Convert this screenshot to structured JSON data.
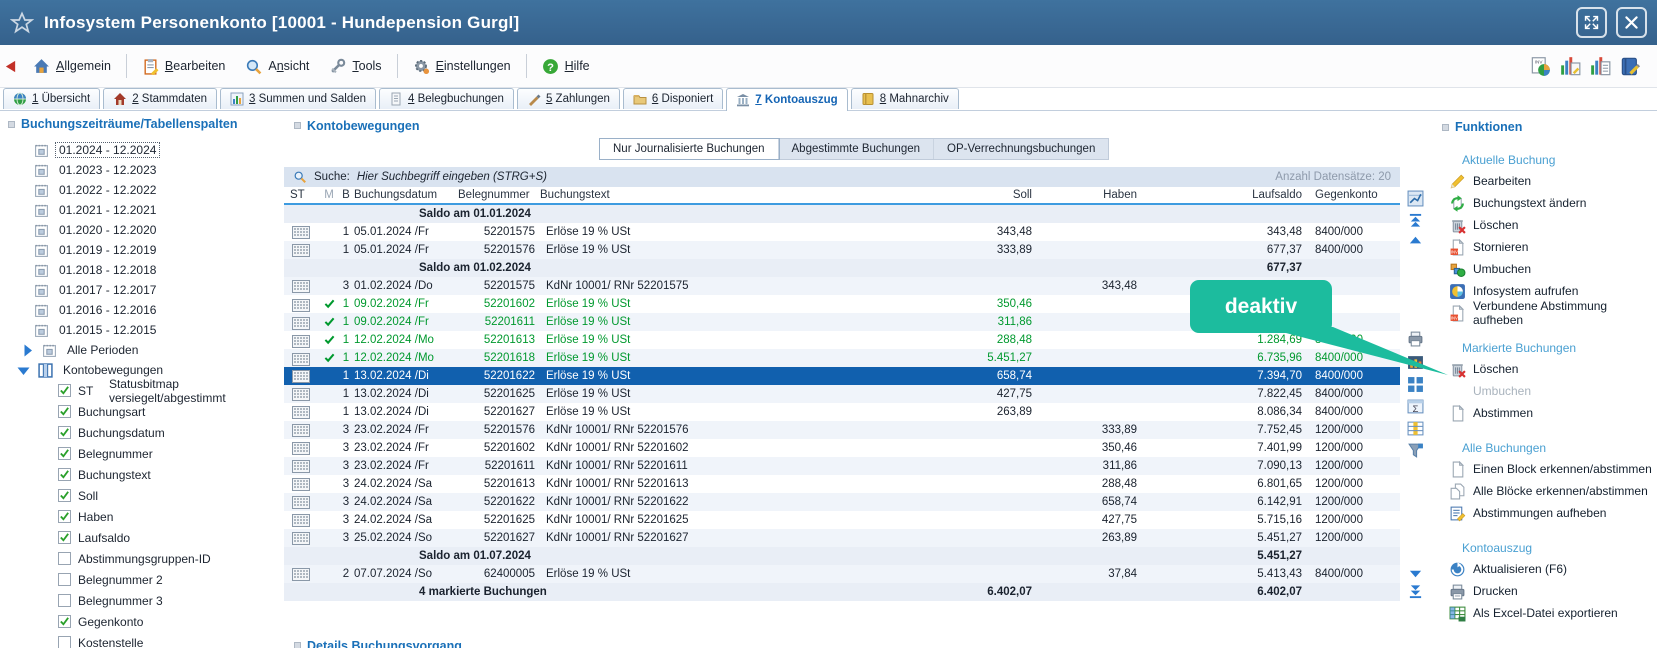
{
  "window": {
    "title": "Infosystem Personenkonto [10001 - Hundepension Gurgl]"
  },
  "menubar": {
    "items": [
      {
        "label": "Allgemein",
        "icon": "house-icon",
        "mnemonic": 0
      },
      {
        "label": "Bearbeiten",
        "icon": "clipboard-icon",
        "mnemonic": 0
      },
      {
        "label": "Ansicht",
        "icon": "magnifier-icon",
        "mnemonic": 1
      },
      {
        "label": "Tools",
        "icon": "wrench-icon",
        "mnemonic": 0
      },
      {
        "label": "Einstellungen",
        "icon": "gear-icon",
        "mnemonic": 0
      },
      {
        "label": "Hilfe",
        "icon": "help-icon",
        "mnemonic": 0
      }
    ],
    "right_icons": [
      "report-chart-icon",
      "chart-edit-icon",
      "chart-doc-icon",
      "book-edit-icon"
    ]
  },
  "tabs": [
    {
      "num": "1",
      "label": "Übersicht",
      "icon": "globe-icon",
      "active": false
    },
    {
      "num": "2",
      "label": "Stammdaten",
      "icon": "home-icon",
      "active": false
    },
    {
      "num": "3",
      "label": "Summen und Salden",
      "icon": "barchart-icon",
      "active": false
    },
    {
      "num": "4",
      "label": "Belegbuchungen",
      "icon": "document-icon",
      "active": false
    },
    {
      "num": "5",
      "label": "Zahlungen",
      "icon": "pen-icon",
      "active": false
    },
    {
      "num": "6",
      "label": "Disponiert",
      "icon": "folder-icon",
      "active": false
    },
    {
      "num": "7",
      "label": "Kontoauszug",
      "icon": "bank-icon",
      "active": true
    },
    {
      "num": "8",
      "label": "Mahnarchiv",
      "icon": "book-icon",
      "active": false
    }
  ],
  "sidebar": {
    "header": "Buchungszeiträume/Tabellenspalten",
    "periods": [
      "01.2024 - 12.2024",
      "01.2023 - 12.2023",
      "01.2022 - 12.2022",
      "01.2021 - 12.2021",
      "01.2020 - 12.2020",
      "01.2019 - 12.2019",
      "01.2018 - 12.2018",
      "01.2017 - 12.2017",
      "01.2016 - 12.2016",
      "01.2015 - 12.2015"
    ],
    "selected_period": 0,
    "alle_perioden": "Alle Perioden",
    "kontobewegungen": "Kontobewegungen",
    "columns": [
      {
        "prefix": "ST",
        "label": "Statusbitmap versiegelt/abgestimmt",
        "checked": true
      },
      {
        "prefix": "",
        "label": "Buchungsart",
        "checked": true
      },
      {
        "prefix": "",
        "label": "Buchungsdatum",
        "checked": true
      },
      {
        "prefix": "",
        "label": "Belegnummer",
        "checked": true
      },
      {
        "prefix": "",
        "label": "Buchungstext",
        "checked": true
      },
      {
        "prefix": "",
        "label": "Soll",
        "checked": true
      },
      {
        "prefix": "",
        "label": "Haben",
        "checked": true
      },
      {
        "prefix": "",
        "label": "Laufsaldo",
        "checked": true
      },
      {
        "prefix": "",
        "label": "Abstimmungsgruppen-ID",
        "checked": false
      },
      {
        "prefix": "",
        "label": "Belegnummer 2",
        "checked": false
      },
      {
        "prefix": "",
        "label": "Belegnummer 3",
        "checked": false
      },
      {
        "prefix": "",
        "label": "Gegenkonto",
        "checked": true
      },
      {
        "prefix": "",
        "label": "Kostenstelle",
        "checked": false
      }
    ]
  },
  "main": {
    "header": "Kontobewegungen",
    "filters": [
      {
        "label": "Nur Journalisierte Buchungen",
        "active": true
      },
      {
        "label": "Abgestimmte Buchungen",
        "active": false
      },
      {
        "label": "OP-Verrechnungsbuchungen",
        "active": false
      }
    ],
    "search": {
      "label": "Suche:",
      "placeholder": "Hier Suchbegriff eingeben (STRG+S)",
      "count": "Anzahl Datensätze: 20"
    },
    "columns": [
      "ST",
      "M",
      "B",
      "Buchungsdatum",
      "Belegnummer",
      "Buchungstext",
      "Soll",
      "Haben",
      "Laufsaldo",
      "Gegenkonto"
    ],
    "rows": [
      {
        "type": "saldo",
        "text": "Saldo am 01.01.2024",
        "laufsaldo": ""
      },
      {
        "type": "entry",
        "b": "1",
        "datum": "05.01.2024 /Fr",
        "beleg": "52201575",
        "text": "Erlöse 19 % USt",
        "soll": "343,48",
        "haben": "",
        "laufsaldo": "343,48",
        "gegenkonto": "8400/000"
      },
      {
        "type": "entry",
        "b": "1",
        "datum": "05.01.2024 /Fr",
        "beleg": "52201576",
        "text": "Erlöse 19 % USt",
        "soll": "333,89",
        "haben": "",
        "laufsaldo": "677,37",
        "gegenkonto": "8400/000"
      },
      {
        "type": "saldo",
        "text": "Saldo am 01.02.2024",
        "laufsaldo": "677,37"
      },
      {
        "type": "entry",
        "b": "3",
        "datum": "01.02.2024 /Do",
        "beleg": "52201575",
        "text": "KdNr 10001/ RNr 52201575",
        "soll": "",
        "haben": "343,48",
        "laufsaldo": "",
        "gegenkonto": ""
      },
      {
        "type": "entry",
        "marked": true,
        "b": "1",
        "datum": "09.02.2024 /Fr",
        "beleg": "52201602",
        "text": "Erlöse 19 % USt",
        "soll": "350,46",
        "haben": "",
        "laufsaldo": "",
        "gegenkonto": ""
      },
      {
        "type": "entry",
        "marked": true,
        "b": "1",
        "datum": "09.02.2024 /Fr",
        "beleg": "52201611",
        "text": "Erlöse 19 % USt",
        "soll": "311,86",
        "haben": "",
        "laufsaldo": "",
        "gegenkonto": ""
      },
      {
        "type": "entry",
        "marked": true,
        "b": "1",
        "datum": "12.02.2024 /Mo",
        "beleg": "52201613",
        "text": "Erlöse 19 % USt",
        "soll": "288,48",
        "haben": "",
        "laufsaldo": "1.284,69",
        "gegenkonto": "8400/000"
      },
      {
        "type": "entry",
        "marked": true,
        "b": "1",
        "datum": "12.02.2024 /Mo",
        "beleg": "52201618",
        "text": "Erlöse 19 % USt",
        "soll": "5.451,27",
        "haben": "",
        "laufsaldo": "6.735,96",
        "gegenkonto": "8400/000"
      },
      {
        "type": "entry",
        "selected": true,
        "b": "1",
        "datum": "13.02.2024 /Di",
        "beleg": "52201622",
        "text": "Erlöse 19 % USt",
        "soll": "658,74",
        "haben": "",
        "laufsaldo": "7.394,70",
        "gegenkonto": "8400/000"
      },
      {
        "type": "entry",
        "b": "1",
        "datum": "13.02.2024 /Di",
        "beleg": "52201625",
        "text": "Erlöse 19 % USt",
        "soll": "427,75",
        "haben": "",
        "laufsaldo": "7.822,45",
        "gegenkonto": "8400/000"
      },
      {
        "type": "entry",
        "b": "1",
        "datum": "13.02.2024 /Di",
        "beleg": "52201627",
        "text": "Erlöse 19 % USt",
        "soll": "263,89",
        "haben": "",
        "laufsaldo": "8.086,34",
        "gegenkonto": "8400/000"
      },
      {
        "type": "entry",
        "b": "3",
        "datum": "23.02.2024 /Fr",
        "beleg": "52201576",
        "text": "KdNr 10001/ RNr 52201576",
        "soll": "",
        "haben": "333,89",
        "laufsaldo": "7.752,45",
        "gegenkonto": "1200/000"
      },
      {
        "type": "entry",
        "b": "3",
        "datum": "23.02.2024 /Fr",
        "beleg": "52201602",
        "text": "KdNr 10001/ RNr 52201602",
        "soll": "",
        "haben": "350,46",
        "laufsaldo": "7.401,99",
        "gegenkonto": "1200/000"
      },
      {
        "type": "entry",
        "b": "3",
        "datum": "23.02.2024 /Fr",
        "beleg": "52201611",
        "text": "KdNr 10001/ RNr 52201611",
        "soll": "",
        "haben": "311,86",
        "laufsaldo": "7.090,13",
        "gegenkonto": "1200/000"
      },
      {
        "type": "entry",
        "b": "3",
        "datum": "24.02.2024 /Sa",
        "beleg": "52201613",
        "text": "KdNr 10001/ RNr 52201613",
        "soll": "",
        "haben": "288,48",
        "laufsaldo": "6.801,65",
        "gegenkonto": "1200/000"
      },
      {
        "type": "entry",
        "b": "3",
        "datum": "24.02.2024 /Sa",
        "beleg": "52201622",
        "text": "KdNr 10001/ RNr 52201622",
        "soll": "",
        "haben": "658,74",
        "laufsaldo": "6.142,91",
        "gegenkonto": "1200/000"
      },
      {
        "type": "entry",
        "b": "3",
        "datum": "24.02.2024 /Sa",
        "beleg": "52201625",
        "text": "KdNr 10001/ RNr 52201625",
        "soll": "",
        "haben": "427,75",
        "laufsaldo": "5.715,16",
        "gegenkonto": "1200/000"
      },
      {
        "type": "entry",
        "b": "3",
        "datum": "25.02.2024 /So",
        "beleg": "52201627",
        "text": "KdNr 10001/ RNr 52201627",
        "soll": "",
        "haben": "263,89",
        "laufsaldo": "5.451,27",
        "gegenkonto": "1200/000"
      },
      {
        "type": "saldo",
        "text": "Saldo am 01.07.2024",
        "laufsaldo": "5.451,27"
      },
      {
        "type": "entry",
        "b": "2",
        "datum": "07.07.2024 /So",
        "beleg": "62400005",
        "text": "Erlöse 19 % USt",
        "soll": "",
        "haben": "37,84",
        "laufsaldo": "5.413,43",
        "gegenkonto": "8400/000"
      },
      {
        "type": "total",
        "text": "4 markierte Buchungen",
        "soll": "6.402,07",
        "laufsaldo": "6.402,07"
      }
    ],
    "details_header": "Details Buchungsvorgang"
  },
  "toolstrip": {
    "icons": [
      "table-chart-icon",
      "scroll-top-icon",
      "scroll-up-icon",
      "print-preview-icon",
      "chart-settings-icon",
      "blocks-icon",
      "sum-icon",
      "table-columns-icon",
      "filter-icon",
      "scroll-down-icon",
      "scroll-bottom-icon"
    ]
  },
  "tooltip": {
    "text": "deaktiv"
  },
  "functions": {
    "header": "Funktionen",
    "sections": [
      {
        "title": "Aktuelle Buchung",
        "items": [
          {
            "label": "Bearbeiten",
            "icon": "pencil-icon"
          },
          {
            "label": "Buchungstext ändern",
            "icon": "change-text-icon"
          },
          {
            "label": "Löschen",
            "icon": "delete-icon"
          },
          {
            "label": "Stornieren",
            "icon": "cancel-doc-icon"
          },
          {
            "label": "Umbuchen",
            "icon": "rebook-icon"
          },
          {
            "label": "Infosystem aufrufen",
            "icon": "pie-chart-icon"
          },
          {
            "label": "Verbundene Abstimmung aufheben",
            "icon": "cancel-doc-icon"
          }
        ]
      },
      {
        "title": "Markierte Buchungen",
        "items": [
          {
            "label": "Löschen",
            "icon": "delete-icon"
          },
          {
            "label": "Umbuchen",
            "icon": "",
            "disabled": true
          },
          {
            "label": "Abstimmen",
            "icon": "doc-icon"
          }
        ]
      },
      {
        "title": "Alle Buchungen",
        "items": [
          {
            "label": "Einen Block erkennen/abstimmen",
            "icon": "doc-icon"
          },
          {
            "label": "Alle Blöcke erkennen/abstimmen",
            "icon": "docs-icon"
          },
          {
            "label": "Abstimmungen aufheben",
            "icon": "doc-edit-icon"
          }
        ]
      },
      {
        "title": "Kontoauszug",
        "items": [
          {
            "label": "Aktualisieren (F6)",
            "icon": "refresh-icon"
          },
          {
            "label": "Drucken",
            "icon": "printer-icon"
          },
          {
            "label": "Als Excel-Datei exportieren",
            "icon": "excel-icon"
          }
        ]
      }
    ]
  },
  "colors": {
    "titlebar": "#3a6b96",
    "accent_blue": "#1a70b8",
    "selected_row": "#1160ae",
    "marked_green": "#00992e",
    "tooltip_teal": "#1cbc9e"
  }
}
